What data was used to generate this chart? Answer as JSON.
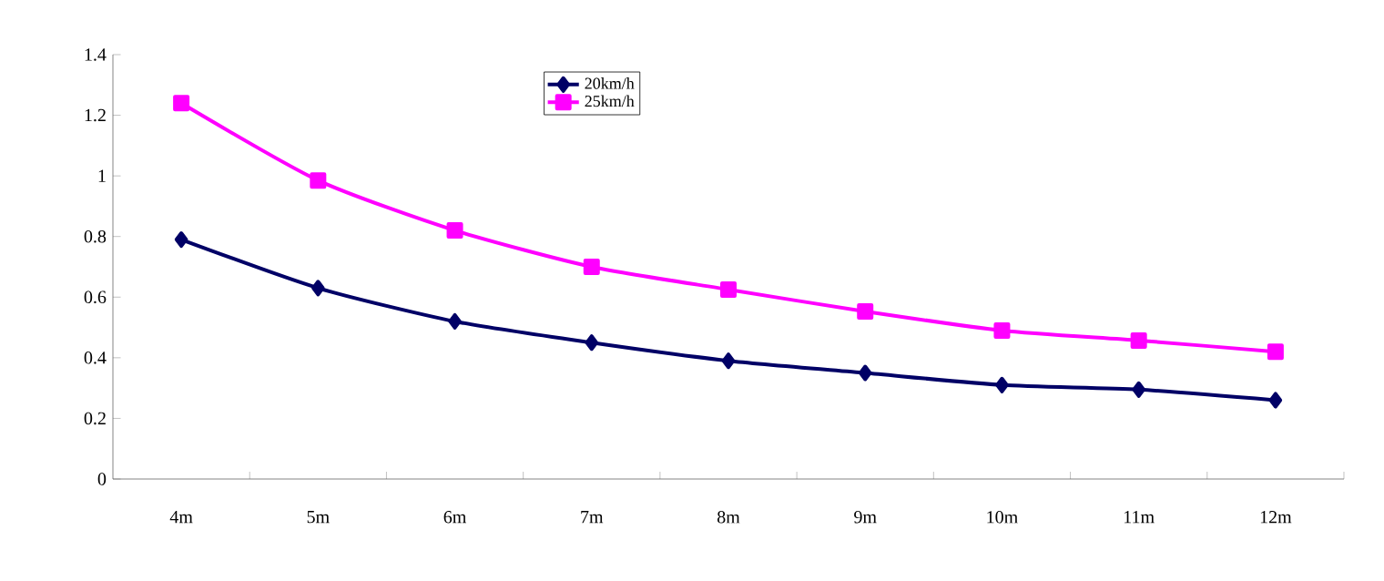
{
  "chart_data": {
    "type": "line",
    "categories": [
      "4m",
      "5m",
      "6m",
      "7m",
      "8m",
      "9m",
      "10m",
      "11m",
      "12m"
    ],
    "series": [
      {
        "name": "20km/h",
        "color": "#000066",
        "marker": "diamond",
        "values": [
          0.79,
          0.63,
          0.52,
          0.45,
          0.39,
          0.35,
          0.31,
          0.295,
          0.26
        ]
      },
      {
        "name": "25km/h",
        "color": "#ff00ff",
        "marker": "square",
        "values": [
          1.24,
          0.985,
          0.82,
          0.7,
          0.625,
          0.553,
          0.49,
          0.457,
          0.42
        ]
      }
    ],
    "ylim": [
      0,
      1.4
    ],
    "yticks": [
      0,
      0.2,
      0.4,
      0.6,
      0.8,
      1,
      1.2,
      1.4
    ],
    "legend": "top",
    "grid": false
  }
}
